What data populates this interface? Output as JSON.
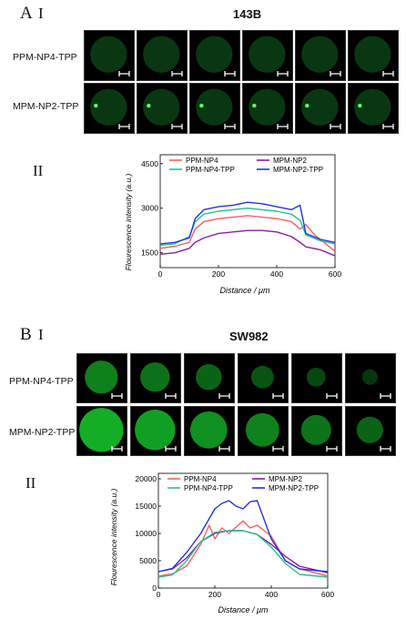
{
  "panelA": {
    "letter": "A",
    "roman1": "I",
    "roman2": "II",
    "cell_title": "143B",
    "row_labels": [
      "PPM-NP4-TPP",
      "MPM-NP2-TPP"
    ]
  },
  "panelB": {
    "letter": "B",
    "roman1": "I",
    "roman2": "II",
    "cell_title": "SW982",
    "row_labels": [
      "PPM-NP4-TPP",
      "MPM-NP2-TPP"
    ]
  },
  "colors": {
    "PPM-NP4": "#f06262",
    "MPM-NP2": "#8b1fa0",
    "PPM-NP4-TPP": "#25c28e",
    "MPM-NP2-TPP": "#2233dd"
  },
  "chart_data": [
    {
      "type": "line",
      "xlabel": "Distance / μm",
      "ylabel": "Flourescence intensity (a.u.)",
      "xlim": [
        0,
        600
      ],
      "ylim": [
        1000,
        4800
      ],
      "xticks": [
        0,
        200,
        400,
        600
      ],
      "yticks": [
        1500,
        3000,
        4500
      ],
      "legend": "top",
      "series": [
        {
          "name": "PPM-NP4",
          "x": [
            0,
            50,
            100,
            120,
            150,
            200,
            250,
            300,
            350,
            400,
            450,
            480,
            500,
            530,
            600
          ],
          "values": [
            1650,
            1720,
            1850,
            2300,
            2550,
            2650,
            2700,
            2750,
            2700,
            2650,
            2550,
            2300,
            2450,
            2100,
            1550
          ]
        },
        {
          "name": "MPM-NP2",
          "x": [
            0,
            50,
            100,
            120,
            150,
            200,
            250,
            300,
            350,
            400,
            450,
            480,
            500,
            550,
            600
          ],
          "values": [
            1450,
            1500,
            1650,
            1850,
            2000,
            2150,
            2200,
            2250,
            2250,
            2200,
            2050,
            1850,
            1700,
            1600,
            1400
          ]
        },
        {
          "name": "PPM-NP4-TPP",
          "x": [
            0,
            50,
            100,
            120,
            150,
            200,
            250,
            300,
            350,
            400,
            450,
            480,
            500,
            550,
            600
          ],
          "values": [
            1750,
            1800,
            2050,
            2550,
            2800,
            2900,
            2950,
            3000,
            2950,
            2900,
            2800,
            2600,
            2100,
            1900,
            1800
          ]
        },
        {
          "name": "MPM-NP2-TPP",
          "x": [
            0,
            50,
            100,
            120,
            150,
            200,
            250,
            300,
            350,
            400,
            450,
            480,
            500,
            550,
            600
          ],
          "values": [
            1800,
            1850,
            2000,
            2650,
            2950,
            3050,
            3100,
            3200,
            3150,
            3050,
            2950,
            3100,
            2150,
            1950,
            1850
          ]
        }
      ]
    },
    {
      "type": "line",
      "xlabel": "Distance / μm",
      "ylabel": "Flourescence intensity (a.u.)",
      "xlim": [
        0,
        600
      ],
      "ylim": [
        0,
        21000
      ],
      "xticks": [
        0,
        200,
        400,
        600
      ],
      "yticks": [
        0,
        5000,
        10000,
        15000,
        20000
      ],
      "legend": "top",
      "series": [
        {
          "name": "PPM-NP4",
          "x": [
            0,
            50,
            100,
            150,
            180,
            200,
            225,
            250,
            300,
            325,
            350,
            400,
            450,
            500,
            600
          ],
          "values": [
            2200,
            2600,
            4000,
            8000,
            11500,
            9000,
            11000,
            10000,
            12300,
            11000,
            11500,
            9500,
            5000,
            3500,
            2200
          ]
        },
        {
          "name": "MPM-NP2",
          "x": [
            0,
            50,
            100,
            150,
            200,
            250,
            300,
            350,
            400,
            450,
            500,
            600
          ],
          "values": [
            3000,
            3500,
            5500,
            8500,
            10000,
            10500,
            10500,
            9800,
            8000,
            5800,
            4000,
            2800
          ]
        },
        {
          "name": "PPM-NP4-TPP",
          "x": [
            0,
            50,
            100,
            150,
            200,
            250,
            300,
            350,
            400,
            450,
            500,
            600
          ],
          "values": [
            2000,
            2400,
            5000,
            8500,
            10200,
            10500,
            10500,
            9800,
            7500,
            4500,
            2500,
            2000
          ]
        },
        {
          "name": "MPM-NP2-TPP",
          "x": [
            0,
            50,
            100,
            150,
            200,
            225,
            250,
            275,
            300,
            325,
            350,
            375,
            400,
            450,
            500,
            600
          ],
          "values": [
            3000,
            3600,
            6500,
            10000,
            14500,
            15500,
            16000,
            15000,
            14500,
            15800,
            16000,
            12500,
            9000,
            5000,
            3500,
            3000
          ]
        }
      ]
    }
  ]
}
